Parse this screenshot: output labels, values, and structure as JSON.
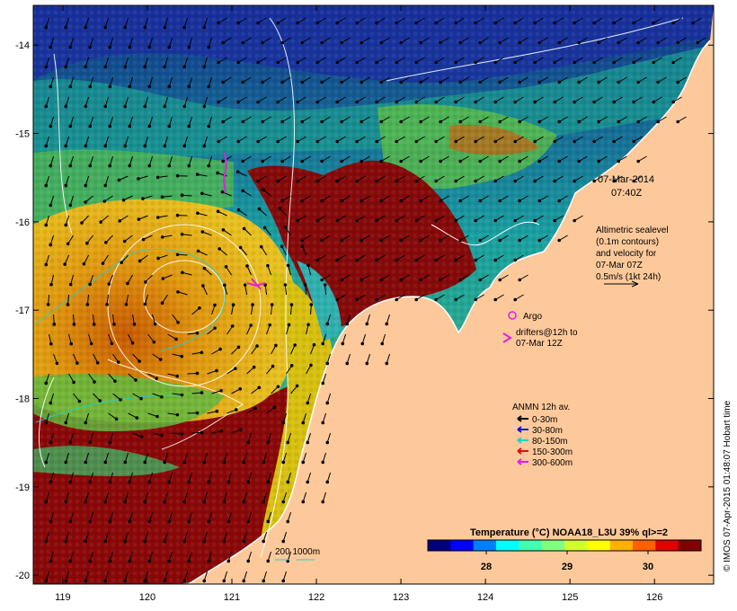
{
  "map": {
    "date": "07-Mar-2014",
    "time": "07:40Z",
    "lon_ticks": [
      "119",
      "120",
      "121",
      "122",
      "123",
      "124",
      "125",
      "126"
    ],
    "lat_ticks": [
      "-14",
      "-15",
      "-16",
      "-17",
      "-18",
      "-19",
      "-20"
    ],
    "lon_range": [
      118.65,
      126.7
    ],
    "lat_range": [
      -20.1,
      -13.55
    ]
  },
  "sealevel_note": {
    "line1": "Altimetric sealevel",
    "line2": "(0.1m contours)",
    "line3": "and velocity for",
    "line4": "07-Mar 07Z",
    "line5": "0.5m/s (1kt 24h)"
  },
  "argo": {
    "label": "Argo",
    "color": "#e020e0"
  },
  "drifters": {
    "line1": "drifters@12h to",
    "line2": "07-Mar 12Z",
    "color": "#e020e0"
  },
  "anmn": {
    "title": "ANMN 12h av.",
    "items": [
      {
        "label": "0-30m",
        "color": "#000000"
      },
      {
        "label": "30-80m",
        "color": "#1010e0"
      },
      {
        "label": "80-150m",
        "color": "#20d0d0"
      },
      {
        "label": "150-300m",
        "color": "#e01010"
      },
      {
        "label": "300-600m",
        "color": "#e020e0"
      }
    ]
  },
  "colorbar": {
    "title": "Temperature (°C) NOAA18_L3U 39% ql>=2",
    "ticks": [
      "28",
      "29",
      "30"
    ],
    "colors": [
      "#00007f",
      "#0000ff",
      "#0080ff",
      "#00ffff",
      "#40ffb0",
      "#80ff80",
      "#d0ff30",
      "#ffff00",
      "#ffb000",
      "#ff6000",
      "#e00000",
      "#800000"
    ]
  },
  "bathy_legend": {
    "label": "200  1000m"
  },
  "credit": "© IMOS 07-Apr-2015 01:48:07 Hobart time",
  "colors": {
    "land": "#fdc99b",
    "coast": "#ffffff",
    "frame": "#000000"
  }
}
